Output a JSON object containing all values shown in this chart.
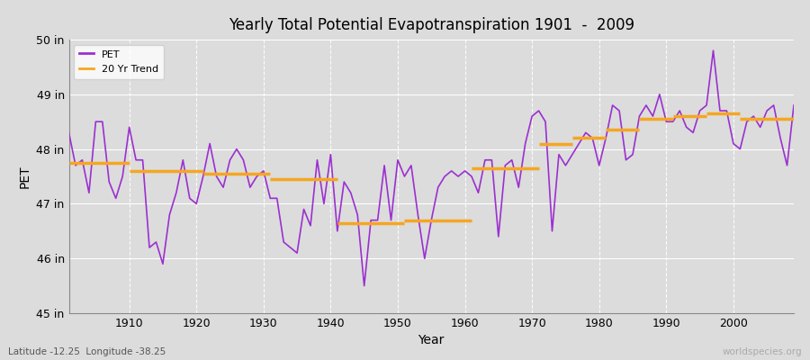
{
  "title": "Yearly Total Potential Evapotranspiration 1901  -  2009",
  "xlabel": "Year",
  "ylabel": "PET",
  "subtitle": "Latitude -12.25  Longitude -38.25",
  "watermark": "worldspecies.org",
  "ylim": [
    45.0,
    50.0
  ],
  "xlim": [
    1901,
    2009
  ],
  "yticks": [
    45,
    46,
    47,
    48,
    49,
    50
  ],
  "ytick_labels": [
    "45 in",
    "46 in",
    "47 in",
    "48 in",
    "49 in",
    "50 in"
  ],
  "xticks": [
    1910,
    1920,
    1930,
    1940,
    1950,
    1960,
    1970,
    1980,
    1990,
    2000
  ],
  "pet_color": "#9b30d0",
  "trend_color": "#f5a623",
  "bg_color": "#dcdcdc",
  "grid_color": "#ffffff",
  "pet_linewidth": 1.2,
  "trend_linewidth": 2.5,
  "pet_data": {
    "years": [
      1901,
      1902,
      1903,
      1904,
      1905,
      1906,
      1907,
      1908,
      1909,
      1910,
      1911,
      1912,
      1913,
      1914,
      1915,
      1916,
      1917,
      1918,
      1919,
      1920,
      1921,
      1922,
      1923,
      1924,
      1925,
      1926,
      1927,
      1928,
      1929,
      1930,
      1931,
      1932,
      1933,
      1934,
      1935,
      1936,
      1937,
      1938,
      1939,
      1940,
      1941,
      1942,
      1943,
      1944,
      1945,
      1946,
      1947,
      1948,
      1949,
      1950,
      1951,
      1952,
      1953,
      1954,
      1955,
      1956,
      1957,
      1958,
      1959,
      1960,
      1961,
      1962,
      1963,
      1964,
      1965,
      1966,
      1967,
      1968,
      1969,
      1970,
      1971,
      1972,
      1973,
      1974,
      1975,
      1976,
      1977,
      1978,
      1979,
      1980,
      1981,
      1982,
      1983,
      1984,
      1985,
      1986,
      1987,
      1988,
      1989,
      1990,
      1991,
      1992,
      1993,
      1994,
      1995,
      1996,
      1997,
      1998,
      1999,
      2000,
      2001,
      2002,
      2003,
      2004,
      2005,
      2006,
      2007,
      2008,
      2009
    ],
    "values": [
      48.3,
      47.7,
      47.8,
      47.2,
      48.5,
      48.5,
      47.4,
      47.1,
      47.5,
      48.4,
      47.8,
      47.8,
      46.2,
      46.3,
      45.9,
      46.8,
      47.2,
      47.8,
      47.1,
      47.0,
      47.5,
      48.1,
      47.5,
      47.3,
      47.8,
      48.0,
      47.8,
      47.3,
      47.5,
      47.6,
      47.1,
      47.1,
      46.3,
      46.2,
      46.1,
      46.9,
      46.6,
      47.8,
      47.0,
      47.9,
      46.5,
      47.4,
      47.2,
      46.8,
      45.5,
      46.7,
      46.7,
      47.7,
      46.7,
      47.8,
      47.5,
      47.7,
      46.8,
      46.0,
      46.7,
      47.3,
      47.5,
      47.6,
      47.5,
      47.6,
      47.5,
      47.2,
      47.8,
      47.8,
      46.4,
      47.7,
      47.8,
      47.3,
      48.1,
      48.6,
      48.7,
      48.5,
      46.5,
      47.9,
      47.7,
      47.9,
      48.1,
      48.3,
      48.2,
      47.7,
      48.2,
      48.8,
      48.7,
      47.8,
      47.9,
      48.6,
      48.8,
      48.6,
      49.0,
      48.5,
      48.5,
      48.7,
      48.4,
      48.3,
      48.7,
      48.8,
      49.8,
      48.7,
      48.7,
      48.1,
      48.0,
      48.5,
      48.6,
      48.4,
      48.7,
      48.8,
      48.2,
      47.7,
      48.8
    ]
  },
  "trend_segments": [
    {
      "x_start": 1901,
      "x_end": 1910,
      "y": 47.75
    },
    {
      "x_start": 1910,
      "x_end": 1921,
      "y": 47.6
    },
    {
      "x_start": 1921,
      "x_end": 1931,
      "y": 47.55
    },
    {
      "x_start": 1931,
      "x_end": 1941,
      "y": 47.45
    },
    {
      "x_start": 1941,
      "x_end": 1951,
      "y": 46.65
    },
    {
      "x_start": 1951,
      "x_end": 1961,
      "y": 46.7
    },
    {
      "x_start": 1961,
      "x_end": 1971,
      "y": 47.65
    },
    {
      "x_start": 1971,
      "x_end": 1976,
      "y": 48.1
    },
    {
      "x_start": 1976,
      "x_end": 1981,
      "y": 48.2
    },
    {
      "x_start": 1981,
      "x_end": 1986,
      "y": 48.35
    },
    {
      "x_start": 1986,
      "x_end": 1991,
      "y": 48.55
    },
    {
      "x_start": 1991,
      "x_end": 1996,
      "y": 48.6
    },
    {
      "x_start": 1996,
      "x_end": 2001,
      "y": 48.65
    },
    {
      "x_start": 2001,
      "x_end": 2009,
      "y": 48.55
    }
  ]
}
